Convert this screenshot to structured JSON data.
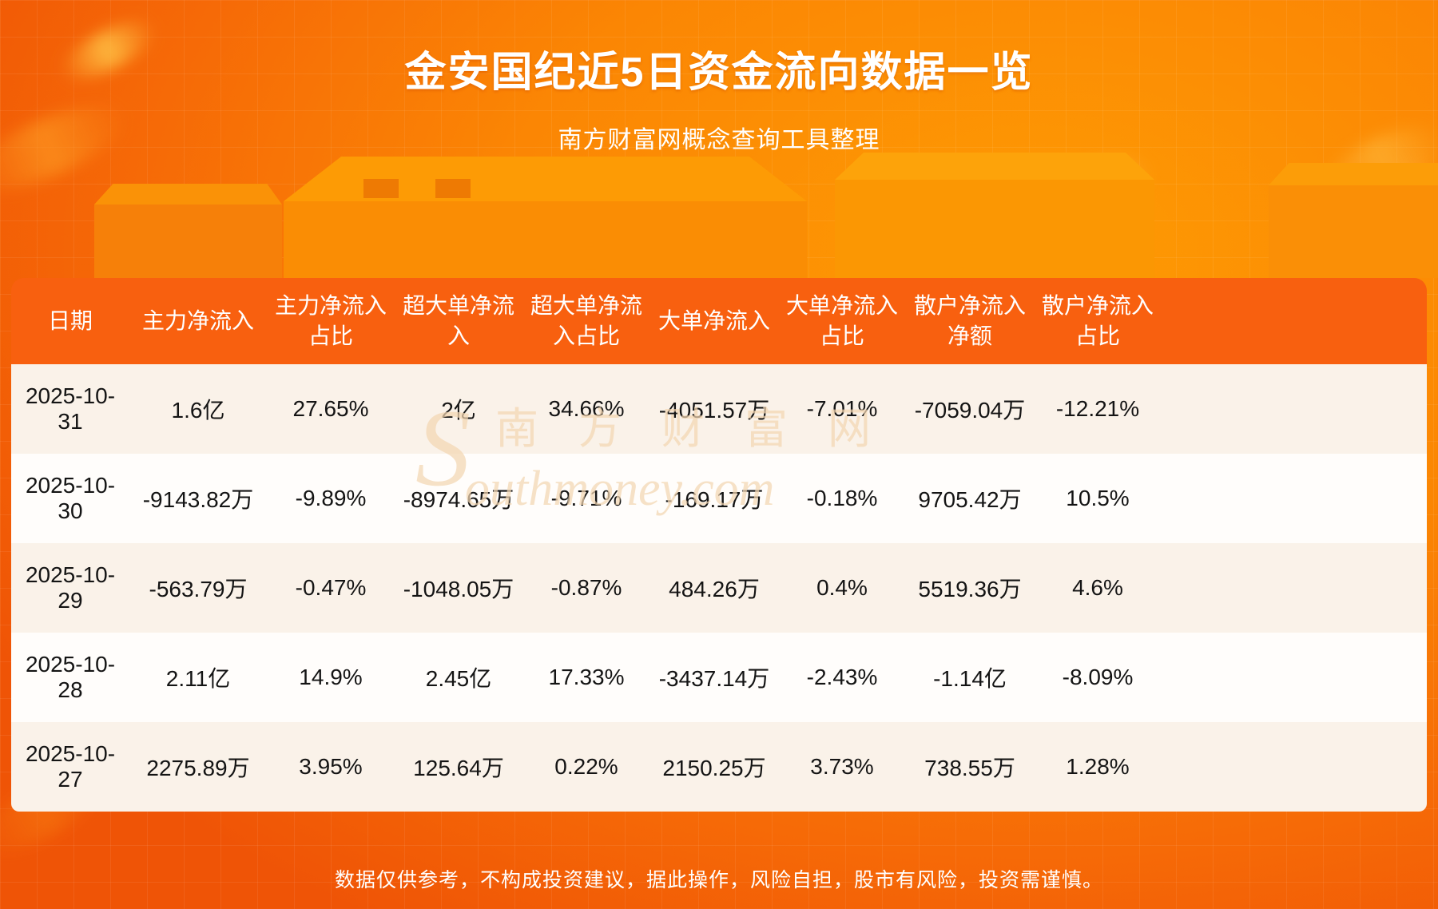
{
  "page": {
    "title": "金安国纪近5日资金流向数据一览",
    "subtitle": "南方财富网概念查询工具整理",
    "footer_disclaimer": "数据仅供参考，不构成投资建议，据此操作，风险自担，股市有风险，投资需谨慎。"
  },
  "watermark": {
    "cn_text": "南方财富网",
    "en_initial": "S",
    "en_rest": "outhmoney.com"
  },
  "colors": {
    "header_bg": "#f8600f",
    "row_cream_bg": "#faf2e9",
    "row_white_bg": "#fffdfb",
    "header_text": "#ffffff",
    "row_text": "#141414",
    "title_text": "#ffffff",
    "bg_dark_orange": "#ef5406",
    "bg_bright_orange": "#fe9b03"
  },
  "chart_data": {
    "type": "table",
    "title": "金安国纪近5日资金流向数据一览",
    "columns": [
      "日期",
      "主力净流入",
      "主力净流入\n占比",
      "超大单净流\n入",
      "超大单净流\n入占比",
      "大单净流入",
      "大单净流入\n占比",
      "散户净流入\n净额",
      "散户净流入\n占比"
    ],
    "rows": [
      [
        "2025-10-31",
        "1.6亿",
        "27.65%",
        "2亿",
        "34.66%",
        "-4051.57万",
        "-7.01%",
        "-7059.04万",
        "-12.21%"
      ],
      [
        "2025-10-30",
        "-9143.82万",
        "-9.89%",
        "-8974.65万",
        "-9.71%",
        "-169.17万",
        "-0.18%",
        "9705.42万",
        "10.5%"
      ],
      [
        "2025-10-29",
        "-563.79万",
        "-0.47%",
        "-1048.05万",
        "-0.87%",
        "484.26万",
        "0.4%",
        "5519.36万",
        "4.6%"
      ],
      [
        "2025-10-28",
        "2.11亿",
        "14.9%",
        "2.45亿",
        "17.33%",
        "-3437.14万",
        "-2.43%",
        "-1.14亿",
        "-8.09%"
      ],
      [
        "2025-10-27",
        "2275.89万",
        "3.95%",
        "125.64万",
        "0.22%",
        "2150.25万",
        "3.73%",
        "738.55万",
        "1.28%"
      ]
    ]
  }
}
